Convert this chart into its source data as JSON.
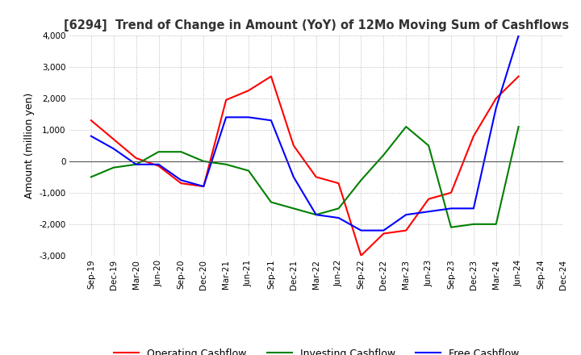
{
  "title": "[6294]  Trend of Change in Amount (YoY) of 12Mo Moving Sum of Cashflows",
  "ylabel": "Amount (million yen)",
  "ylim": [
    -3000,
    4000
  ],
  "yticks": [
    -3000,
    -2000,
    -1000,
    0,
    1000,
    2000,
    3000,
    4000
  ],
  "x_labels": [
    "Sep-19",
    "Dec-19",
    "Mar-20",
    "Jun-20",
    "Sep-20",
    "Dec-20",
    "Mar-21",
    "Jun-21",
    "Sep-21",
    "Dec-21",
    "Mar-22",
    "Jun-22",
    "Sep-22",
    "Dec-22",
    "Mar-23",
    "Jun-23",
    "Sep-23",
    "Dec-23",
    "Mar-24",
    "Jun-24",
    "Sep-24",
    "Dec-24"
  ],
  "operating": [
    1300,
    700,
    100,
    -150,
    -700,
    -800,
    1950,
    2250,
    2700,
    500,
    -500,
    -700,
    -3000,
    -2300,
    -2200,
    -1200,
    -1000,
    800,
    2000,
    2700,
    null,
    null
  ],
  "investing": [
    -500,
    -200,
    -100,
    300,
    300,
    0,
    -100,
    -300,
    -1300,
    -1500,
    -1700,
    -1500,
    -600,
    200,
    1100,
    500,
    -2100,
    -2000,
    -2000,
    1100,
    null,
    null
  ],
  "free": [
    800,
    400,
    -100,
    -100,
    -600,
    -800,
    1400,
    1400,
    1300,
    -500,
    -1700,
    -1800,
    -2200,
    -2200,
    -1700,
    -1600,
    -1500,
    -1500,
    1700,
    4000,
    null,
    null
  ],
  "operating_color": "#ff0000",
  "investing_color": "#008000",
  "free_color": "#0000ff",
  "legend_labels": [
    "Operating Cashflow",
    "Investing Cashflow",
    "Free Cashflow"
  ],
  "background_color": "#ffffff",
  "grid_color": "#aaaaaa"
}
